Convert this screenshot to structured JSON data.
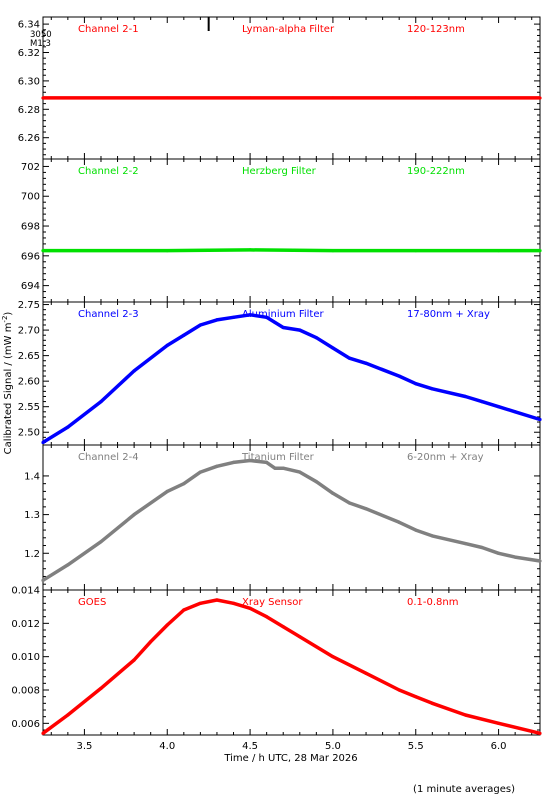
{
  "figure": {
    "ylabel": "Calibrated Signal / (mW m",
    "ylabel_sup": "-2",
    "ylabel_end": ")",
    "xlabel": "Time / h UTC, 28 Mar 2026",
    "footnote": "(1 minute averages)",
    "corner_note": [
      "3050",
      "M1.3"
    ]
  },
  "chart_data": [
    {
      "type": "line",
      "channel": "Channel 2-1",
      "filter": "Lyman-alpha Filter",
      "band": "120-123nm",
      "color": "#ff0000",
      "xlim": [
        3.25,
        6.25
      ],
      "ylim": [
        6.245,
        6.345
      ],
      "yticks": [
        6.26,
        6.28,
        6.3,
        6.32,
        6.34
      ],
      "ytick_labels": [
        "6.26",
        "6.28",
        "6.30",
        "6.32",
        "6.34"
      ],
      "x": [
        3.25,
        4.0,
        4.5,
        5.0,
        5.5,
        6.0,
        6.25
      ],
      "y": [
        6.288,
        6.288,
        6.288,
        6.288,
        6.288,
        6.288,
        6.288
      ]
    },
    {
      "type": "line",
      "channel": "Channel 2-2",
      "filter": "Herzberg Filter",
      "band": "190-222nm",
      "color": "#00e000",
      "xlim": [
        3.25,
        6.25
      ],
      "ylim": [
        692.9,
        702.5
      ],
      "yticks": [
        694,
        696,
        698,
        700,
        702
      ],
      "ytick_labels": [
        "694",
        "696",
        "698",
        "700",
        "702"
      ],
      "x": [
        3.25,
        4.0,
        4.5,
        5.0,
        5.5,
        6.0,
        6.25
      ],
      "y": [
        696.35,
        696.35,
        696.4,
        696.35,
        696.35,
        696.35,
        696.35
      ]
    },
    {
      "type": "line",
      "channel": "Channel 2-3",
      "filter": "Aluminium Filter",
      "band": "17-80nm + Xray",
      "color": "#0000ff",
      "xlim": [
        3.25,
        6.25
      ],
      "ylim": [
        2.475,
        2.755
      ],
      "yticks": [
        2.5,
        2.55,
        2.6,
        2.65,
        2.7,
        2.75
      ],
      "ytick_labels": [
        "2.50",
        "2.55",
        "2.60",
        "2.65",
        "2.70",
        "2.75"
      ],
      "x": [
        3.25,
        3.4,
        3.6,
        3.8,
        4.0,
        4.1,
        4.2,
        4.3,
        4.4,
        4.5,
        4.6,
        4.65,
        4.7,
        4.8,
        4.9,
        5.0,
        5.1,
        5.2,
        5.4,
        5.5,
        5.6,
        5.8,
        5.9,
        6.0,
        6.1,
        6.25
      ],
      "y": [
        2.48,
        2.51,
        2.56,
        2.62,
        2.67,
        2.69,
        2.71,
        2.72,
        2.725,
        2.73,
        2.725,
        2.715,
        2.705,
        2.7,
        2.685,
        2.665,
        2.645,
        2.635,
        2.61,
        2.595,
        2.585,
        2.57,
        2.56,
        2.55,
        2.54,
        2.525
      ]
    },
    {
      "type": "line",
      "channel": "Channel 2-4",
      "filter": "Titanium Filter",
      "band": "6-20nm + Xray",
      "color": "#808080",
      "xlim": [
        3.25,
        6.25
      ],
      "ylim": [
        1.105,
        1.48
      ],
      "yticks": [
        1.2,
        1.3,
        1.4
      ],
      "ytick_labels": [
        "1.2",
        "1.3",
        "1.4"
      ],
      "x": [
        3.25,
        3.4,
        3.6,
        3.8,
        4.0,
        4.1,
        4.2,
        4.3,
        4.4,
        4.5,
        4.6,
        4.65,
        4.7,
        4.8,
        4.9,
        5.0,
        5.1,
        5.2,
        5.4,
        5.5,
        5.6,
        5.8,
        5.9,
        6.0,
        6.1,
        6.25
      ],
      "y": [
        1.13,
        1.17,
        1.23,
        1.3,
        1.36,
        1.38,
        1.41,
        1.425,
        1.435,
        1.44,
        1.435,
        1.42,
        1.42,
        1.41,
        1.385,
        1.355,
        1.33,
        1.315,
        1.28,
        1.26,
        1.245,
        1.225,
        1.215,
        1.2,
        1.19,
        1.18
      ]
    },
    {
      "type": "line",
      "channel": "GOES",
      "filter": "Xray Sensor",
      "band": "0.1-0.8nm",
      "color": "#ff0000",
      "xlim": [
        3.25,
        6.25
      ],
      "ylim": [
        0.0053,
        0.014
      ],
      "yticks": [
        0.006,
        0.008,
        0.01,
        0.012,
        0.014
      ],
      "ytick_labels": [
        "0.006",
        "0.008",
        "0.010",
        "0.012",
        "0.014"
      ],
      "x": [
        3.25,
        3.4,
        3.6,
        3.8,
        3.9,
        4.0,
        4.1,
        4.2,
        4.3,
        4.4,
        4.5,
        4.6,
        4.7,
        4.8,
        5.0,
        5.2,
        5.4,
        5.5,
        5.6,
        5.8,
        6.0,
        6.25
      ],
      "y": [
        0.0054,
        0.0065,
        0.0081,
        0.0098,
        0.0109,
        0.0119,
        0.0128,
        0.0132,
        0.0134,
        0.0132,
        0.0129,
        0.0124,
        0.0118,
        0.0112,
        0.01,
        0.009,
        0.008,
        0.0076,
        0.0072,
        0.0065,
        0.006,
        0.0054
      ]
    }
  ],
  "xaxis": {
    "ticks": [
      3.5,
      4.0,
      4.5,
      5.0,
      5.5,
      6.0
    ],
    "tick_labels": [
      "3.5",
      "4.0",
      "4.5",
      "5.0",
      "5.5",
      "6.0"
    ]
  },
  "event_marker_x": 4.25
}
